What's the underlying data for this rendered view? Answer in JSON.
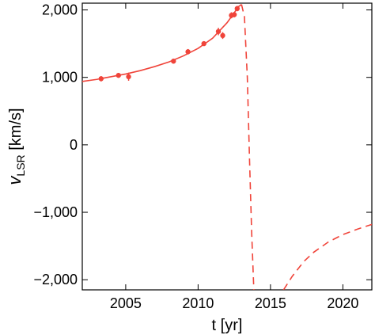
{
  "chart_data": {
    "type": "scatter",
    "title": "",
    "xlabel": "t [yr]",
    "ylabel_var": "v",
    "ylabel_sub": "LSR",
    "ylabel_unit": " [km/s]",
    "xlim": [
      2002,
      2022
    ],
    "ylim": [
      -2150,
      2100
    ],
    "xticks": [
      2005,
      2010,
      2015,
      2020
    ],
    "yticks": [
      2000,
      1000,
      0,
      -1000,
      -2000
    ],
    "ytick_labels": [
      "2,000",
      "1,000",
      "0",
      "−1,000",
      "−2,000"
    ],
    "color": "#f0443a",
    "grid": false,
    "series": [
      {
        "kind": "points",
        "x": [
          2003.3,
          2004.5,
          2005.2,
          2008.3,
          2009.3,
          2010.4,
          2011.4,
          2011.7,
          2012.3,
          2012.5,
          2012.7
        ],
        "y": [
          980,
          1030,
          1010,
          1240,
          1380,
          1500,
          1680,
          1620,
          1920,
          1930,
          2020
        ],
        "yerr": [
          40,
          35,
          60,
          30,
          40,
          35,
          55,
          50,
          45,
          40,
          40
        ]
      },
      {
        "kind": "fit-solid",
        "x": [
          2002,
          2003,
          2004,
          2005,
          2006,
          2007,
          2008,
          2009,
          2010,
          2011,
          2012,
          2012.5,
          2012.8,
          2013.0
        ],
        "y": [
          940,
          970,
          1010,
          1050,
          1100,
          1160,
          1230,
          1320,
          1430,
          1580,
          1810,
          1960,
          2050,
          2080
        ]
      },
      {
        "kind": "fit-dashed",
        "x": [
          2013.0,
          2013.2,
          2013.4,
          2013.55,
          2013.7,
          2013.85
        ],
        "y": [
          2080,
          1900,
          1000,
          -200,
          -1300,
          -2150
        ]
      },
      {
        "kind": "fit-dashed",
        "x": [
          2015.9,
          2016.5,
          2017.3,
          2018.0,
          2019.0,
          2020.0,
          2021.0,
          2022.0
        ],
        "y": [
          -2150,
          -1950,
          -1730,
          -1590,
          -1440,
          -1330,
          -1250,
          -1180
        ]
      }
    ]
  }
}
